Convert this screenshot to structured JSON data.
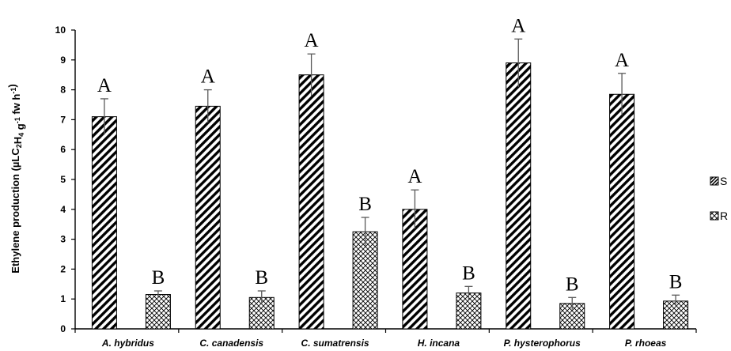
{
  "chart_data": {
    "type": "bar",
    "title": "",
    "xlabel": "",
    "ylabel": {
      "parts": [
        {
          "t": "Ethylene production (µLC",
          "s": "n"
        },
        {
          "t": "2",
          "s": "sub"
        },
        {
          "t": "H",
          "s": "n"
        },
        {
          "t": "4",
          "s": "sub"
        },
        {
          "t": " g",
          "s": "n"
        },
        {
          "t": "-1",
          "s": "sup"
        },
        {
          "t": " fw h",
          "s": "n"
        },
        {
          "t": "-1",
          "s": "sup"
        },
        {
          "t": ")",
          "s": "n"
        }
      ]
    },
    "ylim": [
      0,
      10
    ],
    "yticks": [
      "0",
      "1",
      "2",
      "3",
      "4",
      "5",
      "6",
      "7",
      "8",
      "9",
      "10"
    ],
    "grid": false,
    "legend_position": "right",
    "categories": [
      "A. hybridus",
      "C. canadensis",
      "C. sumatrensis",
      "H. incana",
      "P. hysterophorus",
      "P. rhoeas"
    ],
    "series": [
      {
        "name": "S",
        "pattern": "diagonal-stripes",
        "values": [
          7.1,
          7.45,
          8.5,
          4.0,
          8.9,
          7.85
        ],
        "errors": [
          0.6,
          0.55,
          0.7,
          0.65,
          0.8,
          0.7
        ],
        "letters": [
          "A",
          "A",
          "A",
          "A",
          "A",
          "A"
        ]
      },
      {
        "name": "R",
        "pattern": "crosshatch-dots",
        "values": [
          1.15,
          1.05,
          3.25,
          1.2,
          0.85,
          0.93
        ],
        "errors": [
          0.12,
          0.22,
          0.48,
          0.22,
          0.2,
          0.2
        ],
        "letters": [
          "B",
          "B",
          "B",
          "B",
          "B",
          "B"
        ]
      }
    ]
  },
  "colors": {
    "bar_fill": "#ffffff",
    "bar_stroke": "#000000",
    "hatch": "#000000",
    "axis": "#000000",
    "error_bar": "#595959"
  }
}
